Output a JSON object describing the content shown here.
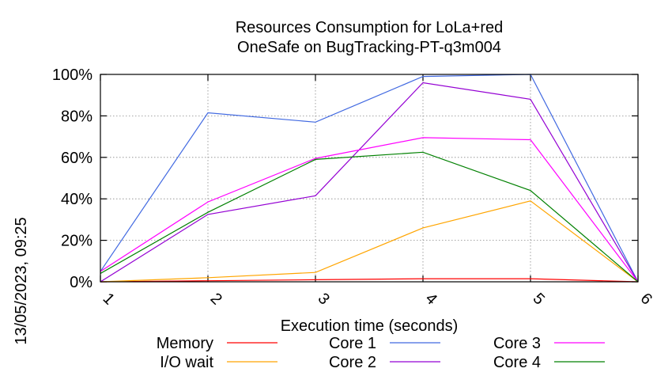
{
  "side_label": "13/05/2023, 09:25",
  "chart_data": {
    "type": "line",
    "title": "Resources Consumption for LoLa+red",
    "subtitle": "OneSafe on BugTracking-PT-q3m004",
    "xlabel": "Execution time (seconds)",
    "ylabel": "",
    "x": [
      1,
      2,
      3,
      4,
      5,
      6
    ],
    "xlim": [
      1,
      6
    ],
    "ylim": [
      0,
      100
    ],
    "yticks": [
      "0%",
      "20%",
      "40%",
      "60%",
      "80%",
      "100%"
    ],
    "xticks": [
      "1",
      "2",
      "3",
      "4",
      "5",
      "6"
    ],
    "grid": true,
    "legend_position": "bottom",
    "series": [
      {
        "name": "Memory",
        "color": "#ff0000",
        "values": [
          0,
          0.5,
          1,
          1.5,
          1.5,
          0
        ]
      },
      {
        "name": "I/O wait",
        "color": "#ffa500",
        "values": [
          0,
          2,
          4.5,
          26,
          39,
          0
        ]
      },
      {
        "name": "Core 1",
        "color": "#4169e1",
        "values": [
          5,
          81.5,
          77,
          99,
          100,
          0
        ]
      },
      {
        "name": "Core 2",
        "color": "#9400d3",
        "values": [
          0,
          32.5,
          41.5,
          96,
          88,
          0
        ]
      },
      {
        "name": "Core 3",
        "color": "#ff00ff",
        "values": [
          5,
          38.5,
          59.5,
          69.5,
          68.5,
          0
        ]
      },
      {
        "name": "Core 4",
        "color": "#008000",
        "values": [
          4,
          33.5,
          59,
          62.5,
          44,
          0
        ]
      }
    ]
  }
}
